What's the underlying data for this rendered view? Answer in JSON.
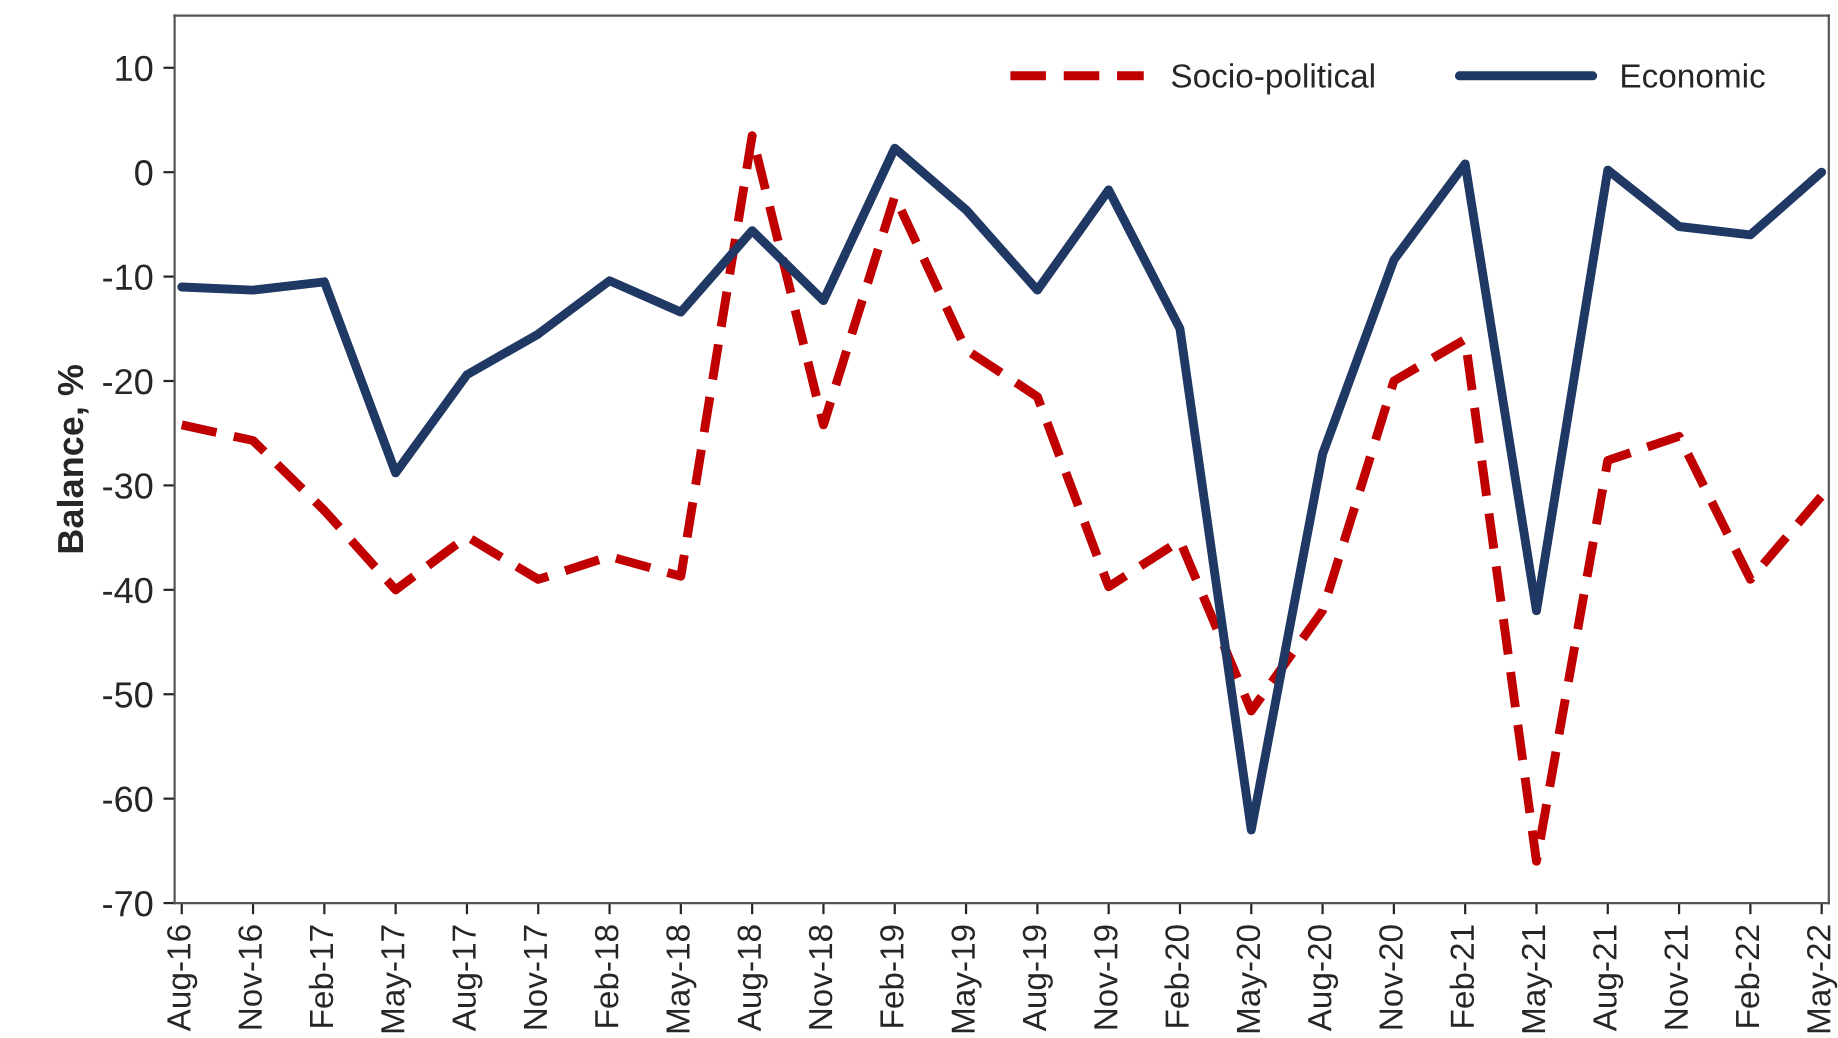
{
  "chart_data": {
    "type": "line",
    "ylabel": "Balance, %",
    "categories": [
      "Aug-16",
      "Nov-16",
      "Feb-17",
      "May-17",
      "Aug-17",
      "Nov-17",
      "Feb-18",
      "May-18",
      "Aug-18",
      "Nov-18",
      "Feb-19",
      "May-19",
      "Aug-19",
      "Nov-19",
      "Feb-20",
      "May-20",
      "Aug-20",
      "Nov-20",
      "Feb-21",
      "May-21",
      "Aug-21",
      "Nov-21",
      "Feb-22",
      "May-22"
    ],
    "series": [
      {
        "name": "Socio-political",
        "color": "#c00000",
        "line_style": "dashed",
        "values": [
          -24.2,
          -25.7,
          -32.4,
          -40,
          -34.9,
          -39,
          -36.8,
          -38.7,
          3.5,
          -24.2,
          -2.3,
          -17,
          -21.5,
          -39.7,
          -35.3,
          -51.6,
          -42,
          -20,
          -16,
          -66,
          -27.6,
          -25.3,
          -39,
          -31
        ]
      },
      {
        "name": "Economic",
        "color": "#1f3864",
        "line_style": "solid",
        "values": [
          -11,
          -11.3,
          -10.5,
          -28.8,
          -19.4,
          -15.5,
          -10.4,
          -13.4,
          -5.6,
          -12.3,
          2.3,
          -3.6,
          -11.3,
          -1.7,
          -15,
          -63,
          -27,
          -8.4,
          0.8,
          -42,
          0.2,
          -5.2,
          -6,
          0
        ]
      }
    ],
    "ylim": [
      -70,
      15
    ],
    "yticks": [
      -70,
      -60,
      -50,
      -40,
      -30,
      -20,
      -10,
      0,
      10
    ],
    "grid": false,
    "legend": "top right"
  }
}
